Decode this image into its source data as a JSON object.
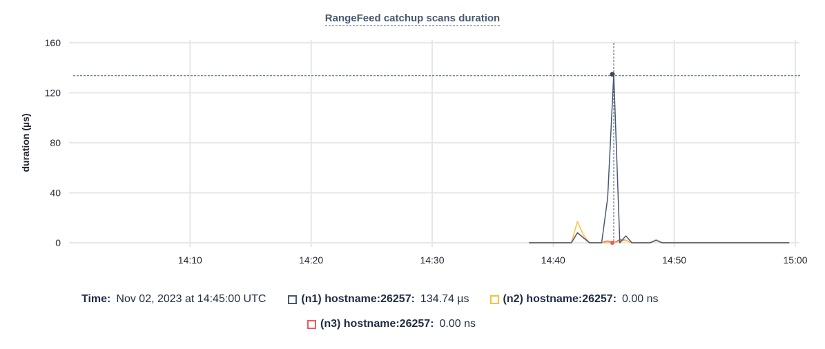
{
  "chart_data": {
    "type": "line",
    "title": "RangeFeed catchup scans duration",
    "ylabel": "duration (µs)",
    "xlabel": "",
    "xlim": [
      "14:00",
      "15:00"
    ],
    "ylim": [
      0,
      160
    ],
    "yticks": [
      0,
      40,
      80,
      120,
      160
    ],
    "xticks": [
      "14:10",
      "14:20",
      "14:30",
      "14:40",
      "14:50",
      "15:00"
    ],
    "grid": true,
    "x_start": "14:38:00",
    "x_step_seconds": 30,
    "series": [
      {
        "name": "(n1) hostname:26257",
        "color": "#475872",
        "values": [
          0,
          0,
          0,
          0,
          0,
          0,
          0,
          0,
          8,
          4,
          0,
          0,
          0,
          36,
          134.74,
          0,
          5.5,
          0,
          0,
          0,
          0,
          2,
          0,
          0,
          0,
          0,
          0,
          0,
          0,
          0,
          0,
          0,
          0,
          0,
          0,
          0,
          0,
          0,
          0,
          0,
          0,
          0,
          0,
          0
        ]
      },
      {
        "name": "(n2) hostname:26257",
        "color": "#f9c13a",
        "values": [
          0,
          0,
          0,
          0,
          0,
          0,
          0,
          0,
          17,
          6,
          0,
          0,
          0,
          0,
          0,
          1,
          2,
          0,
          0,
          0,
          0,
          2.5,
          0,
          0,
          0,
          0,
          0,
          0,
          0,
          0,
          0,
          0,
          0,
          0,
          0,
          0,
          0,
          0,
          0,
          0,
          0,
          0,
          0,
          0
        ]
      },
      {
        "name": "(n3) hostname:26257",
        "color": "#f05a5a",
        "values": [
          0,
          0,
          0,
          0,
          0,
          0,
          0,
          0,
          8,
          4,
          0,
          0,
          0,
          1.5,
          0,
          2.5,
          2,
          0,
          0,
          0,
          0,
          2.5,
          0,
          0,
          0,
          0,
          0,
          0,
          0,
          0,
          0,
          0,
          0,
          0,
          0,
          0,
          0,
          0,
          0,
          0,
          0,
          0,
          0,
          0
        ]
      }
    ],
    "hover": {
      "time": "14:45",
      "value": 134.74
    }
  },
  "legend": {
    "time_label": "Time:",
    "time_value": "Nov 02, 2023 at 14:45:00 UTC",
    "items": [
      {
        "label": "(n1) hostname:26257:",
        "value": "134.74 µs"
      },
      {
        "label": "(n2) hostname:26257:",
        "value": "0.00 ns"
      },
      {
        "label": "(n3) hostname:26257:",
        "value": "0.00 ns"
      }
    ]
  }
}
